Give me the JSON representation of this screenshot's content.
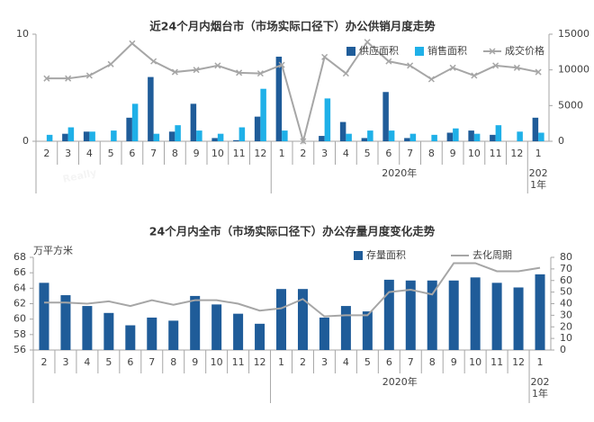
{
  "chart_data": [
    {
      "type": "bar",
      "title": "近24个月内烟台市（市场实际口径下）办公供销月度走势",
      "categories": [
        "2",
        "3",
        "4",
        "5",
        "6",
        "7",
        "8",
        "9",
        "10",
        "11",
        "12",
        "1",
        "2",
        "3",
        "4",
        "5",
        "6",
        "7",
        "8",
        "9",
        "10",
        "11",
        "12",
        "1"
      ],
      "x_groups": [
        {
          "label": "2020年",
          "start": 11,
          "end": 22
        },
        {
          "label": "2021年",
          "start": 23,
          "end": 23
        }
      ],
      "series": [
        {
          "name": "供应面积",
          "type": "bar",
          "color": "#1f5c99",
          "values": [
            0,
            0.7,
            0.9,
            0,
            2.2,
            6.0,
            0.9,
            3.5,
            0.3,
            0.1,
            2.3,
            7.9,
            0,
            0.5,
            1.8,
            0.3,
            4.6,
            0.3,
            0,
            0.8,
            1.0,
            0.6,
            0,
            2.2
          ]
        },
        {
          "name": "销售面积",
          "type": "bar",
          "color": "#1fb0e8",
          "values": [
            0.6,
            1.3,
            0.9,
            1.0,
            3.5,
            0.7,
            1.5,
            1.0,
            0.7,
            1.3,
            4.9,
            1.0,
            0,
            4.0,
            0.7,
            1.0,
            1.0,
            0.7,
            0.6,
            1.2,
            0.7,
            1.5,
            0.9,
            0.8
          ]
        },
        {
          "name": "成交价格",
          "type": "line",
          "axis": "y2",
          "marker": "x",
          "color": "#a6a6a6",
          "values": [
            8800,
            8800,
            9200,
            10800,
            13700,
            11200,
            9700,
            10000,
            10600,
            9600,
            9500,
            10700,
            0,
            11800,
            9500,
            13900,
            11200,
            10600,
            8700,
            10300,
            9200,
            10600,
            10300,
            9700
          ]
        }
      ],
      "ylim": [
        0,
        10
      ],
      "yticks": [
        0,
        10
      ],
      "y2lim": [
        0,
        15000
      ],
      "y2ticks": [
        0,
        5000,
        10000,
        15000
      ],
      "grid": false
    },
    {
      "type": "bar",
      "title": "24个月内全市（市场实际口径下）办公存量月度变化走势",
      "y_label": "万平方米",
      "categories": [
        "2",
        "3",
        "4",
        "5",
        "6",
        "7",
        "8",
        "9",
        "10",
        "11",
        "12",
        "1",
        "2",
        "3",
        "4",
        "5",
        "6",
        "7",
        "8",
        "9",
        "10",
        "11",
        "12",
        "1"
      ],
      "x_groups": [
        {
          "label": "2020年",
          "start": 11,
          "end": 22
        },
        {
          "label": "2021年",
          "start": 23,
          "end": 23
        }
      ],
      "series": [
        {
          "name": "存量面积",
          "type": "bar",
          "color": "#1f5c99",
          "values": [
            64.7,
            63.1,
            61.7,
            60.8,
            59.2,
            60.2,
            59.8,
            63.0,
            61.9,
            60.7,
            59.4,
            63.9,
            63.9,
            60.2,
            61.7,
            61.0,
            65.1,
            65.0,
            65.0,
            65.0,
            65.4,
            64.7,
            64.1,
            65.8
          ]
        },
        {
          "name": "去化周期",
          "type": "line",
          "axis": "y2",
          "color": "#a6a6a6",
          "values": [
            41,
            41,
            40,
            42,
            38,
            43,
            39,
            43,
            43,
            40,
            34,
            36,
            44,
            29,
            30,
            30,
            50,
            52,
            48,
            75,
            75,
            68,
            68,
            71
          ]
        }
      ],
      "ylim": [
        56,
        68
      ],
      "yticks": [
        56,
        58,
        60,
        62,
        64,
        66,
        68
      ],
      "y2lim": [
        0,
        80
      ],
      "y2ticks": [
        0,
        10,
        20,
        30,
        40,
        50,
        60,
        70,
        80
      ],
      "grid": false
    }
  ],
  "watermark": [
    "Really",
    "管理数据"
  ]
}
